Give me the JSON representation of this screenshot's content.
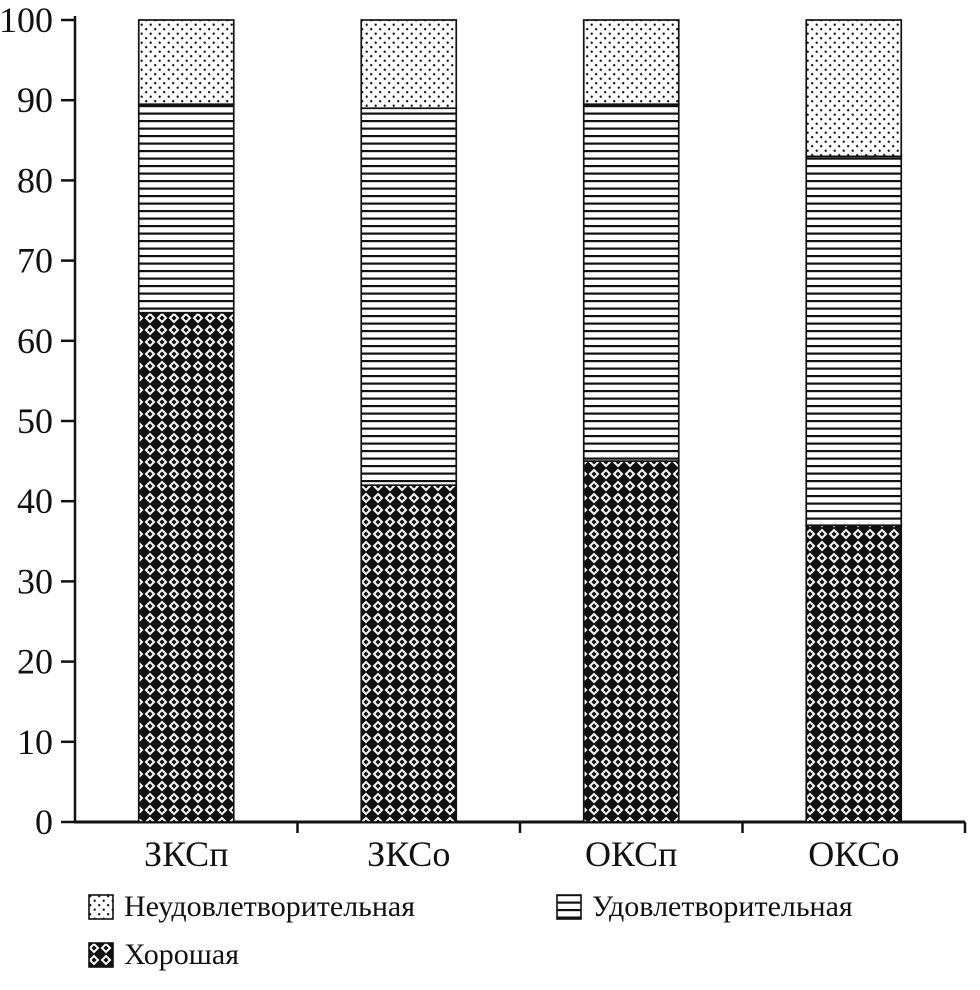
{
  "chart_data": {
    "type": "bar",
    "stacked": true,
    "title": "",
    "xlabel": "",
    "ylabel": "",
    "categories": [
      "ЗКСп",
      "ЗКСо",
      "ОКСп",
      "ОКСо"
    ],
    "series": [
      {
        "name": "Хорошая",
        "pattern": "diamonds",
        "values": [
          63.5,
          42,
          45,
          37
        ]
      },
      {
        "name": "Удовлетворительная",
        "pattern": "hlines",
        "values": [
          26,
          47,
          44.5,
          46
        ]
      },
      {
        "name": "Неудовлетворительная",
        "pattern": "dots",
        "values": [
          10.5,
          11,
          10.5,
          17
        ]
      }
    ],
    "ylim": [
      0,
      100
    ],
    "ytick_step": 10,
    "yticks": [
      0,
      10,
      20,
      30,
      40,
      50,
      60,
      70,
      80,
      90,
      100
    ],
    "grid": false,
    "legend_position": "bottom",
    "colors": {
      "foreground": "#111111",
      "background": "#ffffff"
    }
  },
  "legend": {
    "items": [
      {
        "label": "Неудовлетворительная",
        "pattern": "dots"
      },
      {
        "label": "Удовлетворительная",
        "pattern": "hlines"
      },
      {
        "label": "Хорошая",
        "pattern": "diamonds"
      }
    ]
  }
}
